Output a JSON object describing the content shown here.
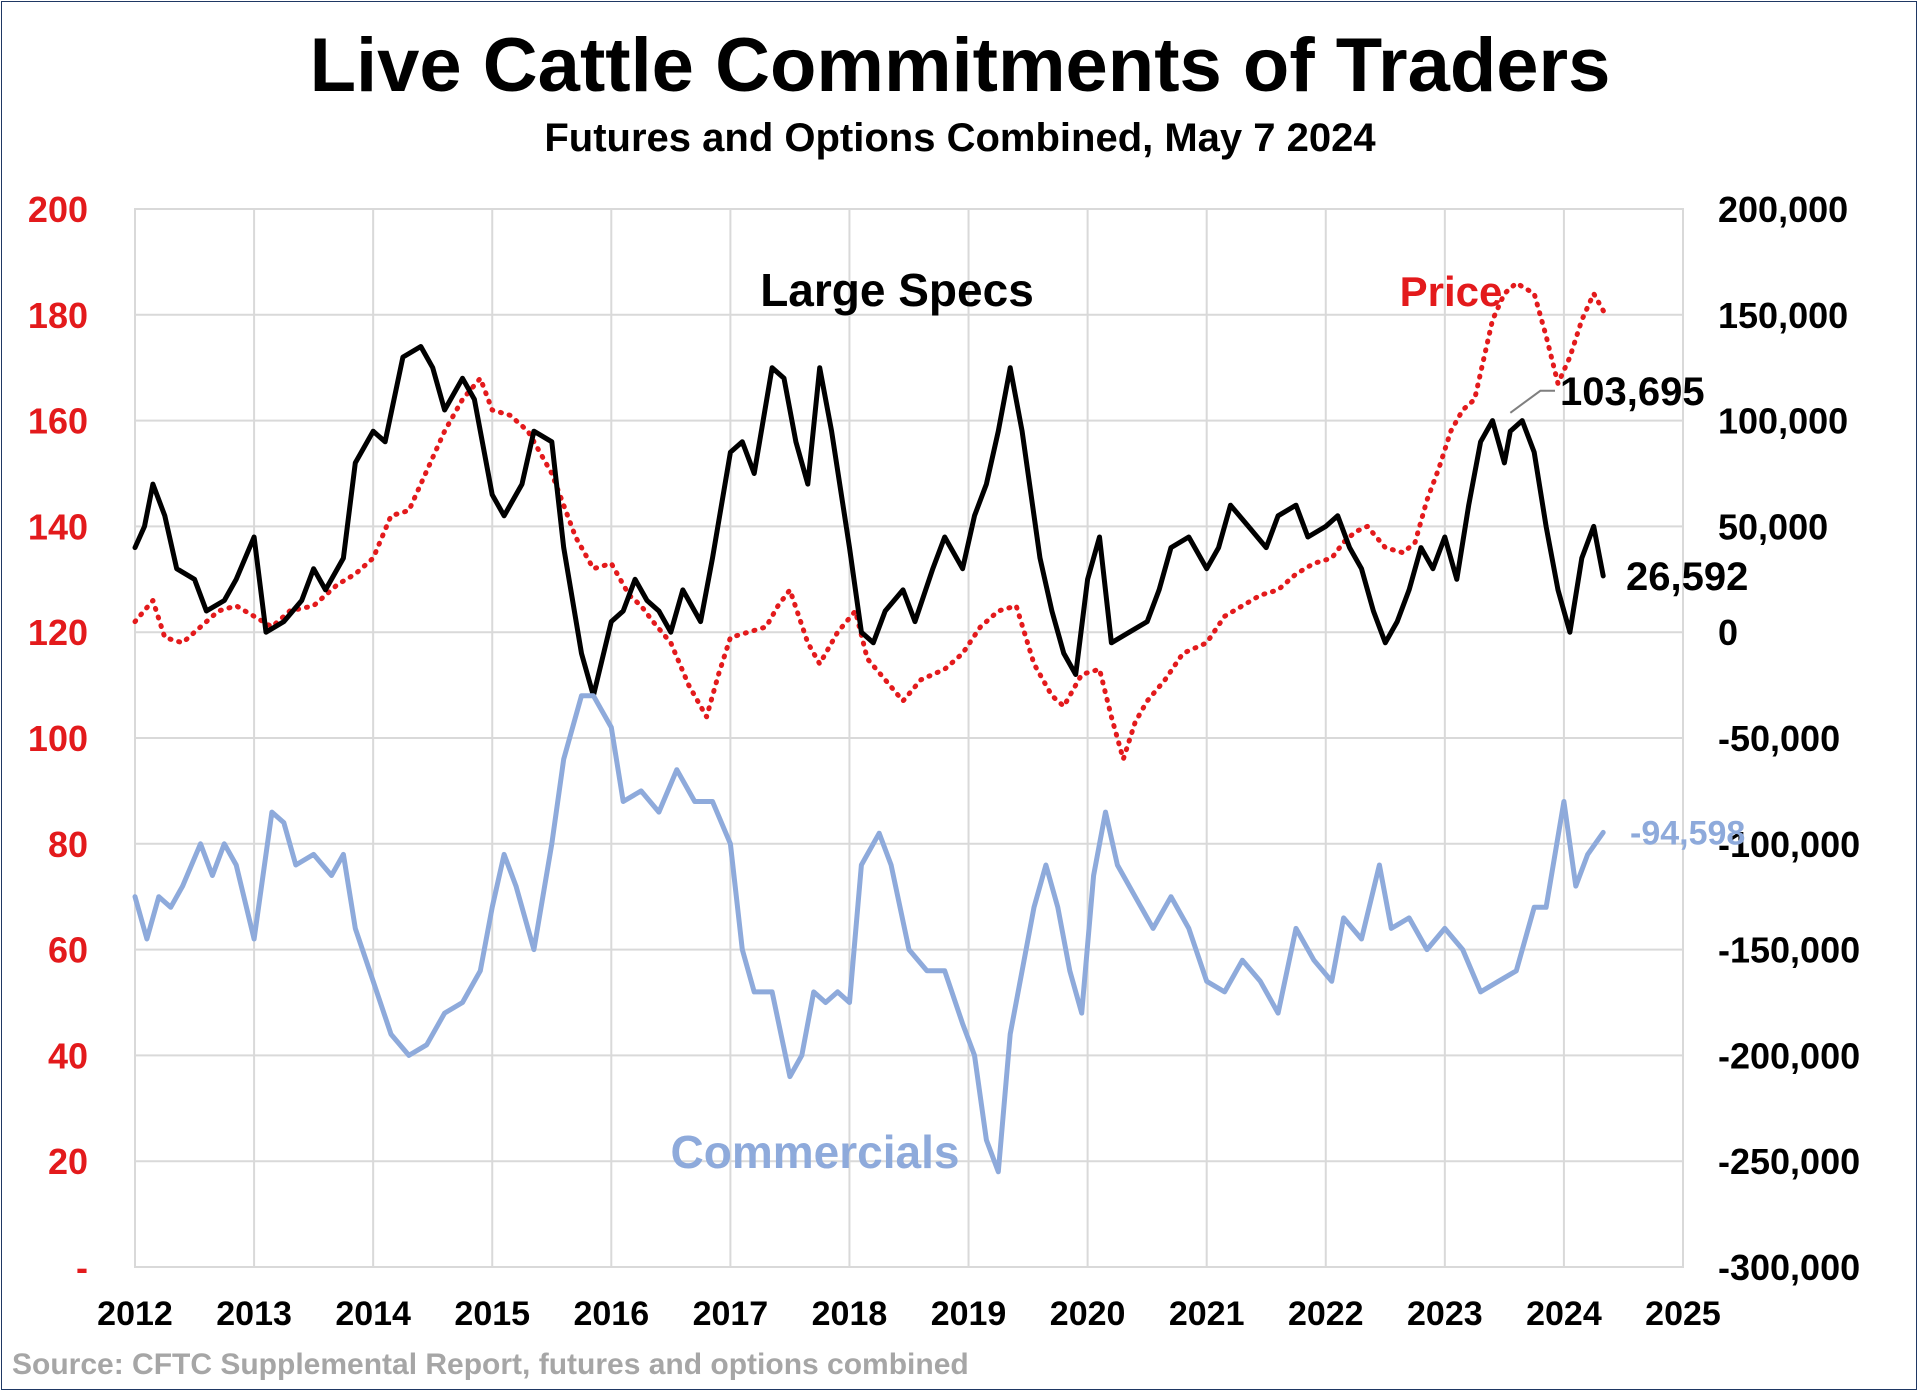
{
  "title": "Live Cattle Commitments of Traders",
  "subtitle": "Futures and Options Combined, May 7 2024",
  "source": "Source: CFTC Supplemental Report, futures and options combined",
  "colors": {
    "price": "#e31a1c",
    "large_specs": "#000000",
    "commercials": "#8eaadb",
    "grid": "#d9d9d9",
    "left_axis_text": "#e31a1c",
    "right_axis_text": "#000000"
  },
  "chart_data": {
    "type": "line",
    "title": "Live Cattle Commitments of Traders",
    "subtitle": "Futures and Options Combined, May 7 2024",
    "x_ticks": [
      "2012",
      "2013",
      "2014",
      "2015",
      "2016",
      "2017",
      "2018",
      "2019",
      "2020",
      "2021",
      "2022",
      "2023",
      "2024",
      "2025"
    ],
    "xlim": [
      2012,
      2025
    ],
    "y_left": {
      "ticks": [
        "-",
        "20",
        "40",
        "60",
        "80",
        "100",
        "120",
        "140",
        "160",
        "180",
        "200"
      ],
      "ylim": [
        0,
        200
      ]
    },
    "y_right": {
      "ticks": [
        "-300,000",
        "-250,000",
        "-200,000",
        "-150,000",
        "-100,000",
        "-50,000",
        "0",
        "50,000",
        "100,000",
        "150,000",
        "200,000"
      ],
      "ylim": [
        -300000,
        200000
      ]
    },
    "grid": true,
    "series": [
      {
        "name": "Price",
        "axis": "left",
        "style": "dotted",
        "color": "#e31a1c",
        "x": [
          2012.0,
          2012.15,
          2012.25,
          2012.4,
          2012.55,
          2012.7,
          2012.85,
          2013.0,
          2013.15,
          2013.3,
          2013.5,
          2013.7,
          2013.85,
          2014.0,
          2014.15,
          2014.3,
          2014.5,
          2014.6,
          2014.75,
          2014.9,
          2015.0,
          2015.15,
          2015.3,
          2015.5,
          2015.7,
          2015.85,
          2016.0,
          2016.15,
          2016.25,
          2016.35,
          2016.5,
          2016.65,
          2016.8,
          2016.9,
          2017.0,
          2017.15,
          2017.3,
          2017.4,
          2017.5,
          2017.65,
          2017.75,
          2017.9,
          2018.05,
          2018.15,
          2018.3,
          2018.45,
          2018.6,
          2018.8,
          2018.95,
          2019.1,
          2019.25,
          2019.4,
          2019.55,
          2019.7,
          2019.8,
          2019.95,
          2020.1,
          2020.2,
          2020.3,
          2020.4,
          2020.5,
          2020.65,
          2020.8,
          2021.0,
          2021.15,
          2021.3,
          2021.45,
          2021.6,
          2021.75,
          2021.9,
          2022.05,
          2022.15,
          2022.25,
          2022.35,
          2022.5,
          2022.65,
          2022.75,
          2022.85,
          2022.95,
          2023.05,
          2023.15,
          2023.25,
          2023.4,
          2023.5,
          2023.6,
          2023.75,
          2023.85,
          2023.95,
          2024.05,
          2024.15,
          2024.25,
          2024.35
        ],
        "y": [
          122,
          126,
          119,
          118,
          121,
          124,
          125,
          123,
          121,
          124,
          125,
          129,
          131,
          134,
          142,
          143,
          153,
          158,
          164,
          168,
          162,
          161,
          158,
          150,
          138,
          132,
          133,
          127,
          125,
          122,
          118,
          110,
          104,
          112,
          119,
          120,
          121,
          125,
          128,
          118,
          114,
          120,
          124,
          115,
          111,
          107,
          111,
          113,
          116,
          121,
          124,
          125,
          114,
          108,
          106,
          112,
          113,
          104,
          96,
          103,
          107,
          111,
          116,
          118,
          123,
          125,
          127,
          128,
          131,
          133,
          134,
          137,
          139,
          140,
          136,
          135,
          137,
          145,
          151,
          158,
          162,
          164,
          179,
          184,
          186,
          184,
          176,
          167,
          172,
          179,
          184,
          180
        ]
      },
      {
        "name": "Large Specs",
        "axis": "right",
        "style": "solid",
        "color": "#000000",
        "x": [
          2012.0,
          2012.08,
          2012.15,
          2012.25,
          2012.35,
          2012.5,
          2012.6,
          2012.75,
          2012.85,
          2013.0,
          2013.1,
          2013.25,
          2013.4,
          2013.5,
          2013.6,
          2013.75,
          2013.85,
          2014.0,
          2014.1,
          2014.25,
          2014.4,
          2014.5,
          2014.6,
          2014.75,
          2014.85,
          2015.0,
          2015.1,
          2015.25,
          2015.35,
          2015.5,
          2015.6,
          2015.75,
          2015.85,
          2016.0,
          2016.1,
          2016.2,
          2016.3,
          2016.4,
          2016.5,
          2016.6,
          2016.75,
          2016.85,
          2017.0,
          2017.1,
          2017.2,
          2017.35,
          2017.45,
          2017.55,
          2017.65,
          2017.75,
          2017.85,
          2018.0,
          2018.1,
          2018.2,
          2018.3,
          2018.45,
          2018.55,
          2018.7,
          2018.8,
          2018.95,
          2019.05,
          2019.15,
          2019.25,
          2019.35,
          2019.45,
          2019.6,
          2019.7,
          2019.8,
          2019.9,
          2020.0,
          2020.1,
          2020.2,
          2020.35,
          2020.5,
          2020.6,
          2020.7,
          2020.85,
          2021.0,
          2021.1,
          2021.2,
          2021.35,
          2021.5,
          2021.6,
          2021.75,
          2021.85,
          2022.0,
          2022.1,
          2022.2,
          2022.3,
          2022.4,
          2022.5,
          2022.6,
          2022.7,
          2022.8,
          2022.9,
          2023.0,
          2023.1,
          2023.2,
          2023.3,
          2023.4,
          2023.5,
          2023.55,
          2023.65,
          2023.75,
          2023.85,
          2023.95,
          2024.05,
          2024.15,
          2024.25,
          2024.33
        ],
        "y": [
          40000,
          50000,
          70000,
          55000,
          30000,
          25000,
          10000,
          15000,
          25000,
          45000,
          0,
          5000,
          15000,
          30000,
          20000,
          35000,
          80000,
          95000,
          90000,
          130000,
          135000,
          125000,
          105000,
          120000,
          110000,
          65000,
          55000,
          70000,
          95000,
          90000,
          40000,
          -10000,
          -30000,
          5000,
          10000,
          25000,
          15000,
          10000,
          0,
          20000,
          5000,
          35000,
          85000,
          90000,
          75000,
          125000,
          120000,
          90000,
          70000,
          125000,
          95000,
          40000,
          0,
          -5000,
          10000,
          20000,
          5000,
          30000,
          45000,
          30000,
          55000,
          70000,
          95000,
          125000,
          95000,
          35000,
          10000,
          -10000,
          -20000,
          25000,
          45000,
          -5000,
          0,
          5000,
          20000,
          40000,
          45000,
          30000,
          40000,
          60000,
          50000,
          40000,
          55000,
          60000,
          45000,
          50000,
          55000,
          40000,
          30000,
          10000,
          -5000,
          5000,
          20000,
          40000,
          30000,
          45000,
          25000,
          60000,
          90000,
          100000,
          80000,
          95000,
          100000,
          85000,
          50000,
          20000,
          0,
          35000,
          50000,
          26592
        ]
      },
      {
        "name": "Commercials",
        "axis": "right",
        "style": "solid",
        "color": "#8eaadb",
        "x": [
          2012.0,
          2012.1,
          2012.2,
          2012.3,
          2012.4,
          2012.55,
          2012.65,
          2012.75,
          2012.85,
          2013.0,
          2013.15,
          2013.25,
          2013.35,
          2013.5,
          2013.65,
          2013.75,
          2013.85,
          2014.0,
          2014.15,
          2014.3,
          2014.45,
          2014.6,
          2014.75,
          2014.9,
          2015.0,
          2015.1,
          2015.2,
          2015.35,
          2015.5,
          2015.6,
          2015.75,
          2015.85,
          2016.0,
          2016.1,
          2016.25,
          2016.4,
          2016.55,
          2016.7,
          2016.85,
          2017.0,
          2017.1,
          2017.2,
          2017.35,
          2017.5,
          2017.6,
          2017.7,
          2017.8,
          2017.9,
          2018.0,
          2018.1,
          2018.25,
          2018.35,
          2018.5,
          2018.65,
          2018.8,
          2018.95,
          2019.05,
          2019.15,
          2019.25,
          2019.35,
          2019.45,
          2019.55,
          2019.65,
          2019.75,
          2019.85,
          2019.95,
          2020.05,
          2020.15,
          2020.25,
          2020.4,
          2020.55,
          2020.7,
          2020.85,
          2021.0,
          2021.15,
          2021.3,
          2021.45,
          2021.6,
          2021.75,
          2021.9,
          2022.05,
          2022.15,
          2022.3,
          2022.45,
          2022.55,
          2022.7,
          2022.85,
          2023.0,
          2023.15,
          2023.3,
          2023.45,
          2023.6,
          2023.75,
          2023.85,
          2024.0,
          2024.1,
          2024.2,
          2024.33
        ],
        "y": [
          -125000,
          -145000,
          -125000,
          -130000,
          -120000,
          -100000,
          -115000,
          -100000,
          -110000,
          -145000,
          -85000,
          -90000,
          -110000,
          -105000,
          -115000,
          -105000,
          -140000,
          -165000,
          -190000,
          -200000,
          -195000,
          -180000,
          -175000,
          -160000,
          -130000,
          -105000,
          -120000,
          -150000,
          -100000,
          -60000,
          -30000,
          -30000,
          -45000,
          -80000,
          -75000,
          -85000,
          -65000,
          -80000,
          -80000,
          -100000,
          -150000,
          -170000,
          -170000,
          -210000,
          -200000,
          -170000,
          -175000,
          -170000,
          -175000,
          -110000,
          -95000,
          -110000,
          -150000,
          -160000,
          -160000,
          -185000,
          -200000,
          -240000,
          -255000,
          -190000,
          -160000,
          -130000,
          -110000,
          -130000,
          -160000,
          -180000,
          -115000,
          -85000,
          -110000,
          -125000,
          -140000,
          -125000,
          -140000,
          -165000,
          -170000,
          -155000,
          -165000,
          -180000,
          -140000,
          -155000,
          -165000,
          -135000,
          -145000,
          -110000,
          -140000,
          -135000,
          -150000,
          -140000,
          -150000,
          -170000,
          -165000,
          -160000,
          -130000,
          -130000,
          -80000,
          -120000,
          -105000,
          -94598
        ]
      }
    ],
    "annotations": [
      {
        "text": "Large Specs",
        "series": "Large Specs"
      },
      {
        "text": "Price",
        "series": "Price"
      },
      {
        "text": "Commercials",
        "series": "Commercials"
      },
      {
        "text": "103,695",
        "series": "Large Specs",
        "axis": "right",
        "value": 103695
      },
      {
        "text": "26,592",
        "series": "Large Specs",
        "axis": "right",
        "value": 26592
      },
      {
        "text": "-94,598",
        "series": "Commercials",
        "axis": "right",
        "value": -94598
      }
    ]
  }
}
